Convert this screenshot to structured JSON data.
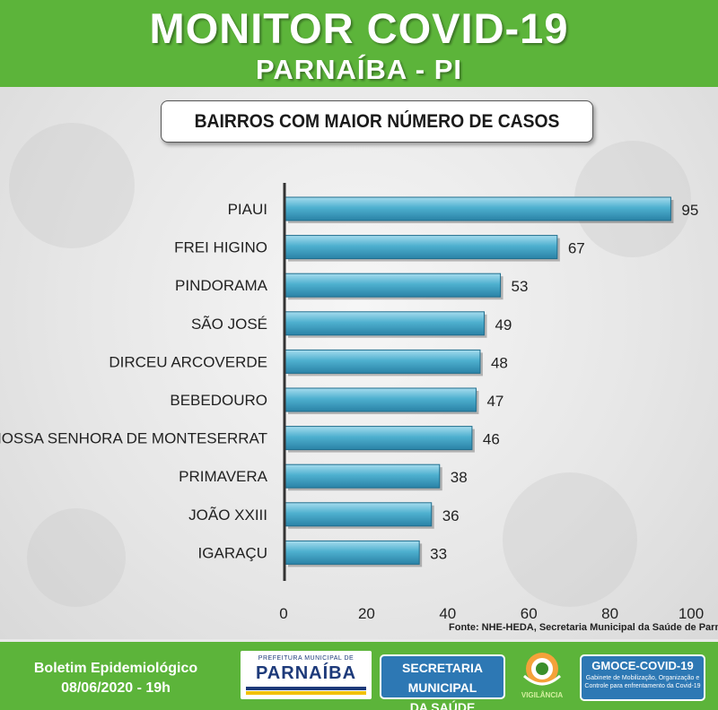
{
  "header": {
    "title": "MONITOR COVID-19",
    "subtitle": "PARNAÍBA - PI"
  },
  "chart_title": "BAIRROS COM MAIOR NÚMERO DE CASOS",
  "chart_data": {
    "type": "bar",
    "orientation": "horizontal",
    "title": "BAIRROS COM MAIOR NÚMERO DE CASOS",
    "categories": [
      "PIAUI",
      "FREI HIGINO",
      "PINDORAMA",
      "SÃO JOSÉ",
      "DIRCEU ARCOVERDE",
      "BEBEDOURO",
      "NOSSA SENHORA DE MONTESERRAT",
      "PRIMAVERA",
      "JOÃO XXIII",
      "IGARAÇU"
    ],
    "values": [
      95,
      67,
      53,
      49,
      48,
      47,
      46,
      38,
      36,
      33
    ],
    "xlim": [
      0,
      100
    ],
    "xticks": [
      0,
      20,
      40,
      60,
      80,
      100
    ],
    "bar_color": "#4eb0cf",
    "grid": false,
    "legend": "none"
  },
  "source": "Fonte: NHE-HEDA, Secretaria Municipal da Saúde de Parnaiba",
  "footer": {
    "boletim_line1": "Boletim Epidemiológico",
    "boletim_line2": "08/06/2020 - 19h",
    "prefeitura_top": "PREFEITURA MUNICIPAL DE",
    "prefeitura_main": "PARNAÍBA",
    "secretaria_line1": "SECRETARIA MUNICIPAL",
    "secretaria_line2": "DA SAÚDE",
    "vigilancia": "VIGILÂNCIA",
    "gmoce_title": "GMOCE-COVID-19",
    "gmoce_sub": "Gabinete de Mobilização, Organização e Controle para enfrentamento da Covid-19"
  },
  "colors": {
    "header_green": "#5cb43a",
    "badge_blue": "#2d78b4",
    "bar": "#4eb0cf"
  }
}
